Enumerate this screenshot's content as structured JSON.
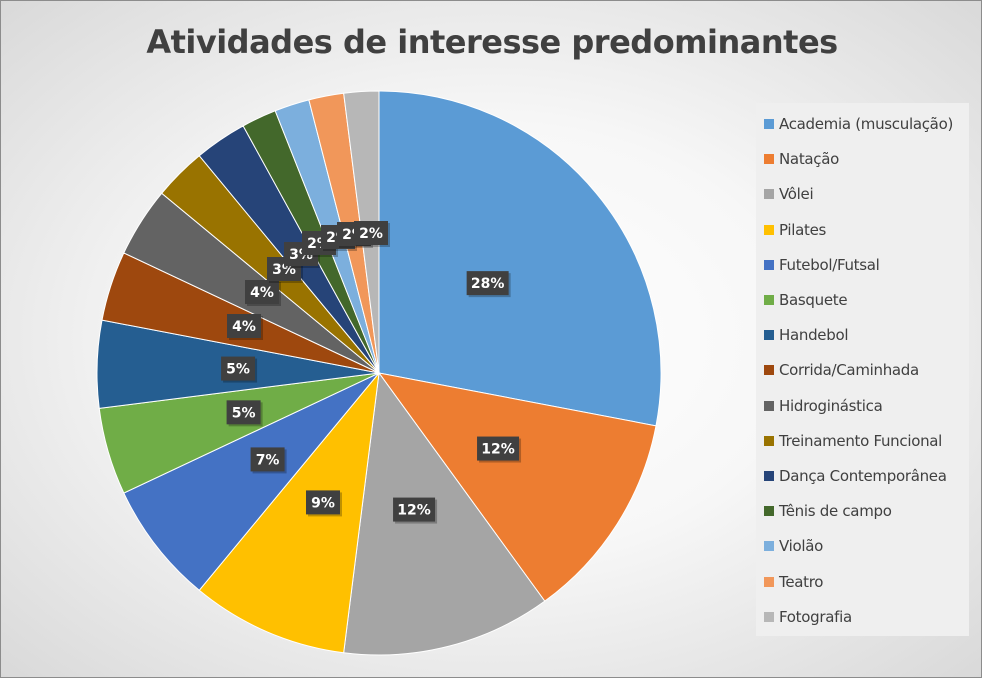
{
  "chart_data": {
    "type": "pie",
    "title": "Atividades de interesse predominantes",
    "legend_position": "right",
    "categories": [
      "Academia (musculação)",
      "Natação",
      "Vôlei",
      "Pilates",
      "Futebol/Futsal",
      "Basquete",
      "Handebol",
      "Corrida/Caminhada",
      "Hidroginástica",
      "Treinamento Funcional",
      "Dança Contemporânea",
      "Tênis de campo",
      "Violão",
      "Teatro",
      "Fotografia"
    ],
    "values": [
      28,
      12,
      12,
      9,
      7,
      5,
      5,
      4,
      4,
      3,
      3,
      2,
      2,
      2,
      2
    ],
    "labels": [
      "28%",
      "12%",
      "12%",
      "9%",
      "7%",
      "5%",
      "5%",
      "4%",
      "4%",
      "3%",
      "3%",
      "2%",
      "2%",
      "2%",
      "2%"
    ],
    "colors": [
      "#5b9bd5",
      "#ed7d31",
      "#a5a5a5",
      "#ffc000",
      "#4472c4",
      "#70ad47",
      "#255e91",
      "#9e480e",
      "#636363",
      "#997300",
      "#264478",
      "#43682b",
      "#7cafdd",
      "#f1975a",
      "#b7b7b7"
    ]
  }
}
